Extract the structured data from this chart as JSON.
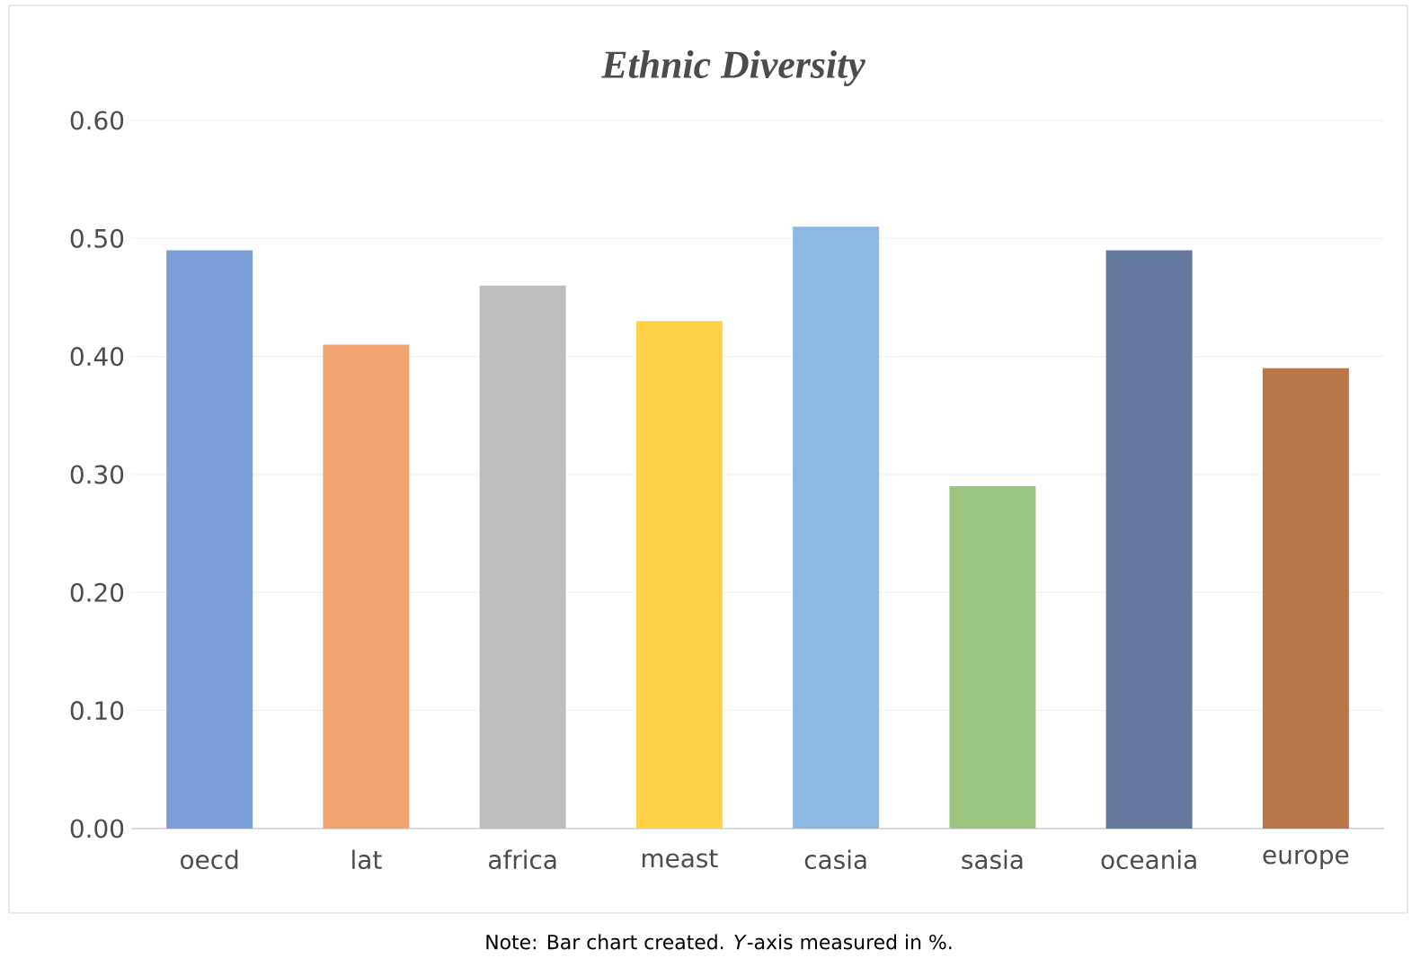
{
  "chart_data": {
    "type": "bar",
    "title": "Ethnic Diversity",
    "categories": [
      "oecd",
      "lat",
      "africa",
      "meast",
      "casia",
      "sasia",
      "oceania",
      "europe"
    ],
    "values": [
      0.49,
      0.41,
      0.46,
      0.43,
      0.51,
      0.29,
      0.49,
      0.39
    ],
    "colors": [
      "#7b9fd8",
      "#f0a470",
      "#bdbdbd",
      "#ffd147",
      "#8db8e3",
      "#9bc57e",
      "#64799f",
      "#b8764a"
    ],
    "ylim": [
      0,
      0.6
    ],
    "yticks": [
      {
        "value": 0,
        "label": "0.00"
      },
      {
        "value": 0.1,
        "label": "0.10"
      },
      {
        "value": 0.2,
        "label": "0.20"
      },
      {
        "value": 0.3,
        "label": "0.30"
      },
      {
        "value": 0.4,
        "label": "0.40"
      },
      {
        "value": 0.5,
        "label": "0.50"
      },
      {
        "value": 0.6,
        "label": "0.60"
      }
    ],
    "grid": "y",
    "annotations": [
      "Note: Bar chart created. *Y*-axis measured in %."
    ]
  }
}
